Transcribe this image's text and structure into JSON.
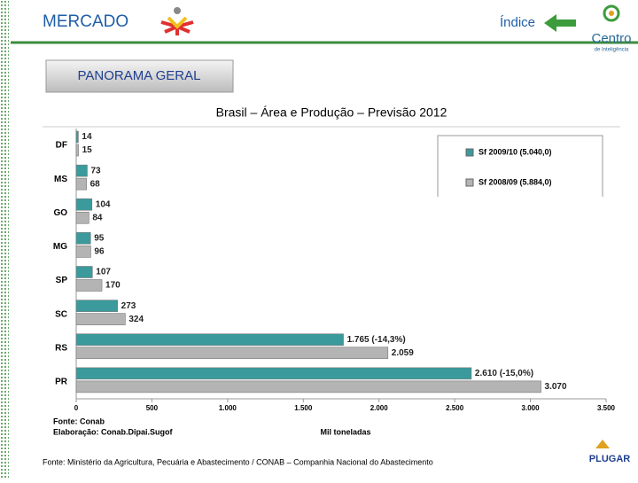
{
  "header": {
    "title": "MERCADO",
    "index_link": "Índice",
    "section_button": "PANORAMA GERAL",
    "logo_text": "Centro",
    "logo_subtext": "de Inteligência",
    "partner_logo": "PLUGAR"
  },
  "chart_data": {
    "type": "hbar",
    "title": "Brasil – Área e Produção – Previsão 2012",
    "categories": [
      "DF",
      "MS",
      "GO",
      "MG",
      "SP",
      "SC",
      "RS",
      "PR"
    ],
    "series": [
      {
        "name": "Sf 2009/10 (5.040,0)",
        "color": "#3a9a9c",
        "values": [
          14,
          73,
          104,
          95,
          107,
          273,
          1765,
          2610
        ],
        "value_labels": [
          "14",
          "73",
          "104",
          "95",
          "107",
          "273",
          "1.765 (-14,3%)",
          "2.610 (-15,0%)"
        ]
      },
      {
        "name": "Sf 2008/09 (5.884,0)",
        "color": "#b4b4b4",
        "values": [
          15,
          68,
          84,
          96,
          170,
          324,
          2059,
          3070
        ],
        "value_labels": [
          "15",
          "68",
          "84",
          "96",
          "170",
          "324",
          "2.059",
          "3.070"
        ]
      }
    ],
    "xlim": [
      0,
      3500
    ],
    "xticks": [
      0,
      500,
      {
        "value": 1000,
        "label": "1.000"
      },
      {
        "value": 1500,
        "label": "1.500"
      },
      {
        "value": 2000,
        "label": "2.000"
      },
      {
        "value": 2500,
        "label": "2.500"
      },
      {
        "value": 3000,
        "label": "3.000"
      },
      {
        "value": 3500,
        "label": "3.500"
      }
    ],
    "xlabel": "Mil toneladas",
    "notes": [
      "Fonte: Conab",
      "Elaboração: Conab.Dipai.Sugof"
    ]
  },
  "footer": "Fonte: Ministério da Agricultura, Pecuária e Abastecimento / CONAB – Companhia Nacional do Abastecimento"
}
